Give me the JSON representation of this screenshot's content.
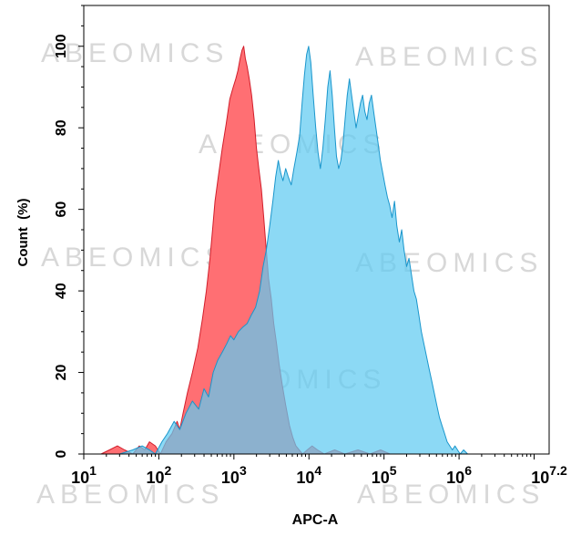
{
  "chart_data": {
    "type": "area",
    "title": "",
    "xlabel": "APC-A",
    "ylabel": "Count  (%)",
    "xscale": "log10",
    "xlim": [
      10,
      15848932
    ],
    "ylim": [
      0,
      110
    ],
    "x_ticks": [
      {
        "base": "10",
        "exp": "1",
        "value": 10
      },
      {
        "base": "10",
        "exp": "2",
        "value": 100
      },
      {
        "base": "10",
        "exp": "3",
        "value": 1000
      },
      {
        "base": "10",
        "exp": "4",
        "value": 10000
      },
      {
        "base": "10",
        "exp": "5",
        "value": 100000
      },
      {
        "base": "10",
        "exp": "6",
        "value": 1000000
      },
      {
        "base": "10",
        "exp": "7.2",
        "value": 15848932
      }
    ],
    "y_ticks": [
      {
        "label": "0",
        "value": 0
      },
      {
        "label": "20",
        "value": 20
      },
      {
        "label": "40",
        "value": 40
      },
      {
        "label": "60",
        "value": 60
      },
      {
        "label": "80",
        "value": 80
      },
      {
        "label": "100",
        "value": 100
      }
    ],
    "grid": false,
    "legend": "none",
    "watermark": "ABEOMICS",
    "series": [
      {
        "color": "#ff6f73",
        "stroke": "#d21e2b",
        "points": [
          [
            17,
            0
          ],
          [
            22,
            1
          ],
          [
            28,
            2
          ],
          [
            35,
            1
          ],
          [
            45,
            0
          ],
          [
            55,
            2
          ],
          [
            65,
            1
          ],
          [
            75,
            3
          ],
          [
            90,
            2
          ],
          [
            105,
            0
          ],
          [
            125,
            3
          ],
          [
            150,
            5
          ],
          [
            175,
            8
          ],
          [
            190,
            6
          ],
          [
            210,
            10
          ],
          [
            240,
            15
          ],
          [
            280,
            20
          ],
          [
            330,
            26
          ],
          [
            380,
            33
          ],
          [
            430,
            40
          ],
          [
            480,
            48
          ],
          [
            520,
            55
          ],
          [
            560,
            62
          ],
          [
            620,
            68
          ],
          [
            700,
            75
          ],
          [
            790,
            81
          ],
          [
            880,
            87
          ],
          [
            980,
            90
          ],
          [
            1060,
            92
          ],
          [
            1130,
            94
          ],
          [
            1210,
            97
          ],
          [
            1280,
            99
          ],
          [
            1350,
            100
          ],
          [
            1420,
            97
          ],
          [
            1500,
            95
          ],
          [
            1600,
            92
          ],
          [
            1720,
            88
          ],
          [
            1860,
            82
          ],
          [
            2000,
            75
          ],
          [
            2150,
            70
          ],
          [
            2320,
            65
          ],
          [
            2500,
            58
          ],
          [
            2700,
            50
          ],
          [
            2900,
            43
          ],
          [
            3150,
            38
          ],
          [
            3400,
            32
          ],
          [
            3700,
            27
          ],
          [
            4000,
            22
          ],
          [
            4400,
            17
          ],
          [
            4900,
            12
          ],
          [
            5500,
            7
          ],
          [
            6100,
            4
          ],
          [
            6700,
            2
          ],
          [
            7400,
            1
          ],
          [
            8200,
            0
          ],
          [
            9500,
            1
          ],
          [
            11000,
            2
          ],
          [
            13000,
            1
          ],
          [
            16000,
            0
          ],
          [
            22000,
            1
          ],
          [
            30000,
            0
          ],
          [
            45000,
            1
          ],
          [
            65000,
            0
          ],
          [
            90000,
            1
          ],
          [
            120000,
            0
          ]
        ]
      },
      {
        "color": "#5fcaf1",
        "stroke": "#1a96cc",
        "points": [
          [
            30,
            0
          ],
          [
            45,
            1
          ],
          [
            60,
            2
          ],
          [
            75,
            1
          ],
          [
            90,
            0
          ],
          [
            110,
            3
          ],
          [
            130,
            5
          ],
          [
            160,
            8
          ],
          [
            190,
            6
          ],
          [
            230,
            10
          ],
          [
            280,
            13
          ],
          [
            340,
            11
          ],
          [
            400,
            16
          ],
          [
            460,
            14
          ],
          [
            530,
            20
          ],
          [
            610,
            23
          ],
          [
            700,
            25
          ],
          [
            800,
            27
          ],
          [
            900,
            29
          ],
          [
            1000,
            28
          ],
          [
            1150,
            30
          ],
          [
            1300,
            31
          ],
          [
            1500,
            32
          ],
          [
            1700,
            34
          ],
          [
            1950,
            36
          ],
          [
            2200,
            40
          ],
          [
            2450,
            46
          ],
          [
            2700,
            50
          ],
          [
            3000,
            56
          ],
          [
            3300,
            62
          ],
          [
            3600,
            68
          ],
          [
            3900,
            72
          ],
          [
            4200,
            69
          ],
          [
            4500,
            67
          ],
          [
            4900,
            70
          ],
          [
            5300,
            68
          ],
          [
            5800,
            66
          ],
          [
            6300,
            70
          ],
          [
            6900,
            74
          ],
          [
            7500,
            78
          ],
          [
            8100,
            86
          ],
          [
            8700,
            93
          ],
          [
            9300,
            98
          ],
          [
            9900,
            100
          ],
          [
            10600,
            96
          ],
          [
            11400,
            88
          ],
          [
            12300,
            80
          ],
          [
            13200,
            74
          ],
          [
            14200,
            70
          ],
          [
            15300,
            75
          ],
          [
            16500,
            82
          ],
          [
            17800,
            90
          ],
          [
            19100,
            94
          ],
          [
            20400,
            88
          ],
          [
            21800,
            80
          ],
          [
            23300,
            73
          ],
          [
            24900,
            70
          ],
          [
            26600,
            72
          ],
          [
            28400,
            76
          ],
          [
            30300,
            82
          ],
          [
            32400,
            88
          ],
          [
            34600,
            92
          ],
          [
            37000,
            88
          ],
          [
            39600,
            84
          ],
          [
            42400,
            80
          ],
          [
            45400,
            83
          ],
          [
            48500,
            86
          ],
          [
            51900,
            88
          ],
          [
            55500,
            84
          ],
          [
            59400,
            82
          ],
          [
            63500,
            86
          ],
          [
            68000,
            88
          ],
          [
            72800,
            84
          ],
          [
            78000,
            80
          ],
          [
            83600,
            76
          ],
          [
            89600,
            72
          ],
          [
            96000,
            69
          ],
          [
            103000,
            66
          ],
          [
            111000,
            63
          ],
          [
            119000,
            61
          ],
          [
            128000,
            58
          ],
          [
            138000,
            62
          ],
          [
            148000,
            56
          ],
          [
            160000,
            52
          ],
          [
            172000,
            55
          ],
          [
            185000,
            50
          ],
          [
            200000,
            46
          ],
          [
            215000,
            48
          ],
          [
            232000,
            44
          ],
          [
            250000,
            40
          ],
          [
            270000,
            38
          ],
          [
            292000,
            34
          ],
          [
            315000,
            30
          ],
          [
            340000,
            27
          ],
          [
            368000,
            24
          ],
          [
            398000,
            21
          ],
          [
            431000,
            18
          ],
          [
            467000,
            15
          ],
          [
            505000,
            12
          ],
          [
            547000,
            9
          ],
          [
            592000,
            7
          ],
          [
            641000,
            5
          ],
          [
            694000,
            3
          ],
          [
            752000,
            2
          ],
          [
            814000,
            1
          ],
          [
            881000,
            2
          ],
          [
            954000,
            1
          ],
          [
            1033000,
            0
          ],
          [
            1150000,
            1
          ],
          [
            1300000,
            0
          ]
        ]
      }
    ]
  }
}
